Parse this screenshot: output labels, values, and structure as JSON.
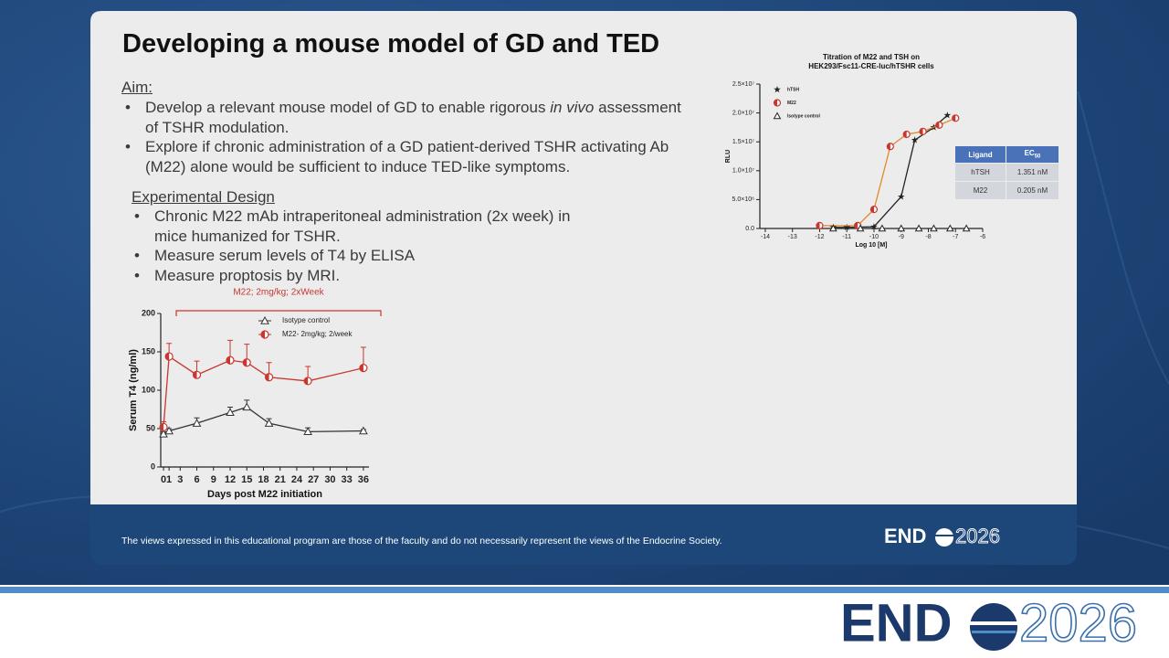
{
  "slide": {
    "title": "Developing a mouse model of GD and TED",
    "aim": {
      "heading": "Aim:",
      "bullets": [
        [
          "Develop a relevant mouse model of GD to enable rigorous",
          "in vivo",
          "assessment of TSHR modulation."
        ],
        "Explore if chronic administration of a GD patient-derived TSHR activating Ab (M22) alone would be sufficient to induce TED-like symptoms."
      ]
    },
    "design": {
      "heading": "Experimental Design",
      "bullets": [
        "Chronic M22 mAb intraperitoneal administration (2x week) in mice humanized for TSHR.",
        "Measure serum levels of T4 by ELISA",
        "Measure proptosis by MRI."
      ]
    },
    "footer": "The views expressed in this educational program are those of the faculty and do not necessarily represent the views of the Endocrine Society.",
    "logo": {
      "bold": "END",
      "light": "2026"
    }
  },
  "table": {
    "header": [
      "Ligand",
      [
        "EC",
        "50"
      ]
    ],
    "rows": [
      [
        "hTSH",
        "1.351 nM"
      ],
      [
        "M22",
        "0.205 nM"
      ]
    ]
  },
  "chart_data": [
    {
      "type": "line",
      "annotation": "M22; 2mg/kg; 2xWeek",
      "x_label": "Days post M22 initiation",
      "y_label": "Serum T4 (ng/ml)",
      "x": [
        0,
        1,
        6,
        12,
        15,
        19,
        26,
        36
      ],
      "series": [
        {
          "name": "Isotype control",
          "color": "#333333",
          "marker": "triangle",
          "values": [
            43,
            47,
            57,
            71,
            78,
            57,
            46,
            47
          ],
          "errors": [
            3,
            3,
            7,
            7,
            9,
            6,
            5,
            2
          ]
        },
        {
          "name": "M22- 2mg/kg; 2/week",
          "color": "#c8362e",
          "marker": "half-circle",
          "values": [
            52,
            144,
            120,
            139,
            136,
            117,
            112,
            129
          ],
          "errors": [
            7,
            17,
            18,
            26,
            24,
            19,
            19,
            27
          ]
        }
      ],
      "xlim": [
        -0.5,
        37
      ],
      "xticks": [
        0,
        1,
        3,
        6,
        9,
        12,
        15,
        18,
        21,
        24,
        27,
        30,
        33,
        36
      ],
      "ylim": [
        0,
        200
      ],
      "yticks": [
        0,
        50,
        100,
        150,
        200
      ]
    },
    {
      "type": "scatter",
      "title": [
        "Titration of M22 and TSH on",
        "HEK293/Fsc11-CRE-luc/hTSHR cells"
      ],
      "x_label": "Log 10 [M]",
      "y_label": "RLU",
      "series": [
        {
          "name": "hTSH",
          "color": "#222222",
          "marker": "star",
          "x": [
            -11.5,
            -11,
            -10,
            -9,
            -8.5,
            -7.8,
            -7.3
          ],
          "values": [
            200000,
            200000,
            300000,
            5500000,
            15300000,
            17500000,
            19600000
          ]
        },
        {
          "name": "M22",
          "color": "#e08a2c",
          "marker": "half-circle",
          "x": [
            -12,
            -10.6,
            -10,
            -9.4,
            -8.8,
            -8.2,
            -7.6,
            -7
          ],
          "values": [
            500000,
            500000,
            3300000,
            14200000,
            16300000,
            16800000,
            17900000,
            19100000
          ]
        },
        {
          "name": "Isotype control",
          "color": "#222222",
          "marker": "triangle",
          "x": [
            -11.5,
            -10.5,
            -9.7,
            -9,
            -8.35,
            -7.8,
            -7.2,
            -6.6
          ],
          "values": [
            0,
            0,
            0,
            0,
            0,
            0,
            0,
            0
          ]
        }
      ],
      "xlim": [
        -14.2,
        -6
      ],
      "xticks": [
        -14,
        -13,
        -12,
        -11,
        -10,
        -9,
        -8,
        -7,
        -6
      ],
      "ylim": [
        0,
        25000000
      ],
      "yticks": [
        {
          "value": 0,
          "label": "0.0"
        },
        {
          "value": 5000000,
          "label": "5.0×10⁶"
        },
        {
          "value": 10000000,
          "label": "1.0×10⁷"
        },
        {
          "value": 15000000,
          "label": "1.5×10⁷"
        },
        {
          "value": 20000000,
          "label": "2.0×10⁷"
        },
        {
          "value": 25000000,
          "label": "2.5×10⁷"
        }
      ]
    }
  ]
}
